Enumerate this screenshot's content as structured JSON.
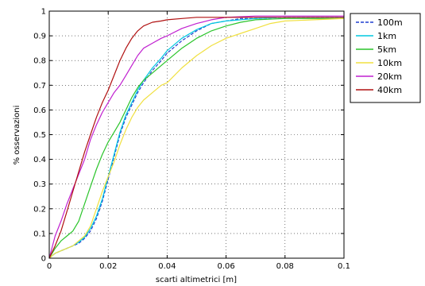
{
  "chart_data": {
    "type": "line",
    "xlabel": "scarti altimetrici [m]",
    "ylabel": "% osservazioni",
    "xlim": [
      0,
      0.1
    ],
    "ylim": [
      0,
      1
    ],
    "grid": true,
    "legend_position": "outside-top-right",
    "x_ticks": [
      "0",
      "0.02",
      "0.04",
      "0.06",
      "0.08",
      "0.1"
    ],
    "y_ticks": [
      "0",
      "0.1",
      "0.2",
      "0.3",
      "0.4",
      "0.5",
      "0.6",
      "0.7",
      "0.8",
      "0.9",
      "1"
    ],
    "series": [
      {
        "name": "100m",
        "color": "#1f3fd0",
        "dashed": true,
        "points": [
          [
            0,
            0
          ],
          [
            0.002,
            0.02
          ],
          [
            0.004,
            0.03
          ],
          [
            0.006,
            0.04
          ],
          [
            0.008,
            0.05
          ],
          [
            0.01,
            0.06
          ],
          [
            0.012,
            0.08
          ],
          [
            0.014,
            0.11
          ],
          [
            0.016,
            0.16
          ],
          [
            0.018,
            0.23
          ],
          [
            0.02,
            0.32
          ],
          [
            0.022,
            0.41
          ],
          [
            0.024,
            0.5
          ],
          [
            0.026,
            0.57
          ],
          [
            0.028,
            0.62
          ],
          [
            0.03,
            0.67
          ],
          [
            0.032,
            0.71
          ],
          [
            0.035,
            0.76
          ],
          [
            0.038,
            0.8
          ],
          [
            0.04,
            0.83
          ],
          [
            0.045,
            0.88
          ],
          [
            0.05,
            0.92
          ],
          [
            0.055,
            0.95
          ],
          [
            0.06,
            0.96
          ],
          [
            0.065,
            0.97
          ],
          [
            0.07,
            0.97
          ],
          [
            0.08,
            0.975
          ],
          [
            0.1,
            0.975
          ]
        ]
      },
      {
        "name": "1km",
        "color": "#00c8e0",
        "dashed": false,
        "points": [
          [
            0,
            0
          ],
          [
            0.002,
            0.02
          ],
          [
            0.004,
            0.03
          ],
          [
            0.006,
            0.04
          ],
          [
            0.008,
            0.05
          ],
          [
            0.01,
            0.065
          ],
          [
            0.012,
            0.085
          ],
          [
            0.014,
            0.12
          ],
          [
            0.016,
            0.17
          ],
          [
            0.018,
            0.24
          ],
          [
            0.02,
            0.33
          ],
          [
            0.022,
            0.42
          ],
          [
            0.024,
            0.51
          ],
          [
            0.026,
            0.58
          ],
          [
            0.028,
            0.63
          ],
          [
            0.03,
            0.68
          ],
          [
            0.032,
            0.72
          ],
          [
            0.035,
            0.77
          ],
          [
            0.038,
            0.81
          ],
          [
            0.04,
            0.84
          ],
          [
            0.045,
            0.89
          ],
          [
            0.05,
            0.925
          ],
          [
            0.055,
            0.95
          ],
          [
            0.06,
            0.96
          ],
          [
            0.065,
            0.965
          ],
          [
            0.07,
            0.97
          ],
          [
            0.08,
            0.975
          ],
          [
            0.1,
            0.975
          ]
        ]
      },
      {
        "name": "5km",
        "color": "#2ac42a",
        "dashed": false,
        "points": [
          [
            0,
            0
          ],
          [
            0.002,
            0.04
          ],
          [
            0.004,
            0.07
          ],
          [
            0.006,
            0.09
          ],
          [
            0.008,
            0.11
          ],
          [
            0.01,
            0.15
          ],
          [
            0.012,
            0.22
          ],
          [
            0.014,
            0.29
          ],
          [
            0.016,
            0.36
          ],
          [
            0.018,
            0.42
          ],
          [
            0.02,
            0.47
          ],
          [
            0.022,
            0.51
          ],
          [
            0.024,
            0.55
          ],
          [
            0.026,
            0.6
          ],
          [
            0.028,
            0.65
          ],
          [
            0.03,
            0.69
          ],
          [
            0.032,
            0.72
          ],
          [
            0.035,
            0.75
          ],
          [
            0.038,
            0.78
          ],
          [
            0.04,
            0.8
          ],
          [
            0.045,
            0.85
          ],
          [
            0.05,
            0.89
          ],
          [
            0.055,
            0.92
          ],
          [
            0.06,
            0.94
          ],
          [
            0.065,
            0.955
          ],
          [
            0.07,
            0.965
          ],
          [
            0.08,
            0.97
          ],
          [
            0.1,
            0.97
          ]
        ]
      },
      {
        "name": "10km",
        "color": "#f0e040",
        "dashed": false,
        "points": [
          [
            0,
            0
          ],
          [
            0.002,
            0.02
          ],
          [
            0.004,
            0.03
          ],
          [
            0.006,
            0.04
          ],
          [
            0.008,
            0.05
          ],
          [
            0.01,
            0.07
          ],
          [
            0.012,
            0.09
          ],
          [
            0.014,
            0.13
          ],
          [
            0.016,
            0.2
          ],
          [
            0.018,
            0.27
          ],
          [
            0.02,
            0.33
          ],
          [
            0.022,
            0.39
          ],
          [
            0.024,
            0.46
          ],
          [
            0.026,
            0.52
          ],
          [
            0.028,
            0.57
          ],
          [
            0.03,
            0.61
          ],
          [
            0.032,
            0.64
          ],
          [
            0.035,
            0.67
          ],
          [
            0.038,
            0.7
          ],
          [
            0.04,
            0.71
          ],
          [
            0.045,
            0.77
          ],
          [
            0.05,
            0.82
          ],
          [
            0.055,
            0.86
          ],
          [
            0.06,
            0.89
          ],
          [
            0.065,
            0.91
          ],
          [
            0.07,
            0.93
          ],
          [
            0.075,
            0.95
          ],
          [
            0.08,
            0.96
          ],
          [
            0.09,
            0.965
          ],
          [
            0.1,
            0.97
          ]
        ]
      },
      {
        "name": "20km",
        "color": "#c020d0",
        "dashed": false,
        "points": [
          [
            0,
            0
          ],
          [
            0.002,
            0.09
          ],
          [
            0.004,
            0.15
          ],
          [
            0.006,
            0.22
          ],
          [
            0.008,
            0.28
          ],
          [
            0.01,
            0.34
          ],
          [
            0.012,
            0.4
          ],
          [
            0.014,
            0.48
          ],
          [
            0.016,
            0.54
          ],
          [
            0.018,
            0.59
          ],
          [
            0.02,
            0.63
          ],
          [
            0.022,
            0.67
          ],
          [
            0.024,
            0.7
          ],
          [
            0.026,
            0.74
          ],
          [
            0.028,
            0.78
          ],
          [
            0.03,
            0.82
          ],
          [
            0.032,
            0.85
          ],
          [
            0.035,
            0.87
          ],
          [
            0.038,
            0.89
          ],
          [
            0.04,
            0.9
          ],
          [
            0.045,
            0.93
          ],
          [
            0.05,
            0.95
          ],
          [
            0.055,
            0.965
          ],
          [
            0.06,
            0.975
          ],
          [
            0.07,
            0.98
          ],
          [
            0.08,
            0.98
          ],
          [
            0.1,
            0.98
          ]
        ]
      },
      {
        "name": "40km",
        "color": "#b01010",
        "dashed": false,
        "points": [
          [
            0,
            0
          ],
          [
            0.002,
            0.05
          ],
          [
            0.004,
            0.11
          ],
          [
            0.006,
            0.19
          ],
          [
            0.008,
            0.27
          ],
          [
            0.01,
            0.35
          ],
          [
            0.012,
            0.43
          ],
          [
            0.014,
            0.5
          ],
          [
            0.016,
            0.57
          ],
          [
            0.018,
            0.63
          ],
          [
            0.02,
            0.68
          ],
          [
            0.022,
            0.74
          ],
          [
            0.024,
            0.8
          ],
          [
            0.026,
            0.85
          ],
          [
            0.028,
            0.89
          ],
          [
            0.03,
            0.92
          ],
          [
            0.032,
            0.94
          ],
          [
            0.035,
            0.955
          ],
          [
            0.038,
            0.96
          ],
          [
            0.04,
            0.965
          ],
          [
            0.045,
            0.97
          ],
          [
            0.05,
            0.975
          ],
          [
            0.06,
            0.975
          ],
          [
            0.07,
            0.975
          ],
          [
            0.08,
            0.975
          ],
          [
            0.1,
            0.975
          ]
        ]
      }
    ]
  }
}
